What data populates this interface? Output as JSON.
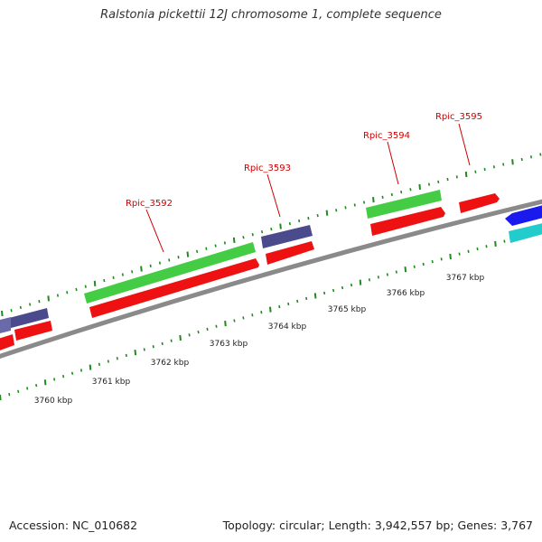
{
  "title": "Ralstonia pickettii 12J chromosome 1, complete sequence",
  "accession_label": "Accession: NC_010682",
  "summary": "Topology: circular; Length: 3,942,557 bp; Genes: 3,767",
  "colors": {
    "backbone": "#8a8a8a",
    "tick": "#1f8a1f",
    "label": "#cc0000",
    "green_feature": "#44cc44",
    "red_feature": "#ee1111",
    "purple_feature": "#4a4a8c",
    "blue_feature": "#1a1aee",
    "cyan_feature": "#22cccc"
  },
  "gene_labels": [
    "Rpic_3592",
    "Rpic_3593",
    "Rpic_3594",
    "Rpic_3595"
  ],
  "kbp_labels": [
    "3760 kbp",
    "3761 kbp",
    "3762 kbp",
    "3763 kbp",
    "3764 kbp",
    "3765 kbp",
    "3766 kbp",
    "3767 kbp"
  ]
}
